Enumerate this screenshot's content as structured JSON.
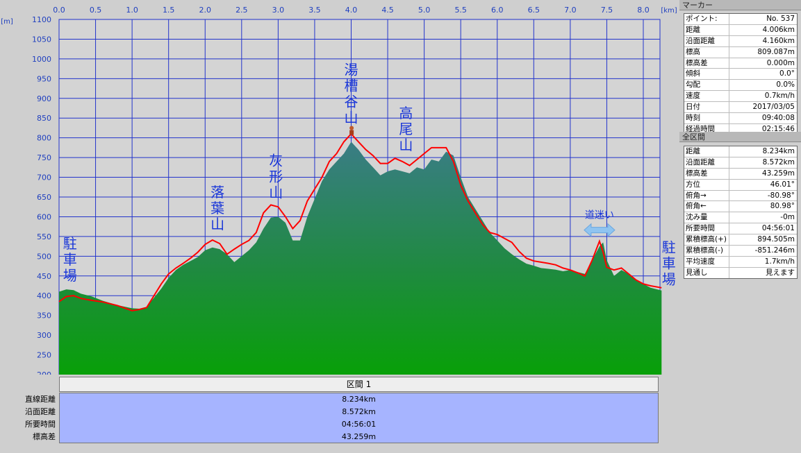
{
  "chart_data": {
    "type": "area",
    "xlabel_unit": "[km]",
    "ylabel_unit": "[m]",
    "x_ticks": [
      "0.0",
      "0.5",
      "1.0",
      "1.5",
      "2.0",
      "2.5",
      "3.0",
      "3.5",
      "4.0",
      "4.5",
      "5.0",
      "5.5",
      "6.0",
      "6.5",
      "7.0",
      "7.5",
      "8.0"
    ],
    "y_ticks": [
      "1100",
      "1050",
      "1000",
      "950",
      "900",
      "850",
      "800",
      "750",
      "700",
      "650",
      "600",
      "550",
      "500",
      "450",
      "400",
      "350",
      "300",
      "250",
      "200"
    ],
    "xlim": [
      0,
      8.25
    ],
    "ylim": [
      200,
      1100
    ],
    "grid": true,
    "series": [
      {
        "role": "terrain",
        "color": "#1f9a3a",
        "x": [
          0,
          0.1,
          0.2,
          0.3,
          0.45,
          0.6,
          0.8,
          1.0,
          1.1,
          1.2,
          1.3,
          1.4,
          1.5,
          1.6,
          1.7,
          1.8,
          1.9,
          2.0,
          2.1,
          2.2,
          2.3,
          2.4,
          2.5,
          2.6,
          2.7,
          2.8,
          2.9,
          3.0,
          3.1,
          3.2,
          3.3,
          3.4,
          3.5,
          3.6,
          3.7,
          3.8,
          3.9,
          4.0,
          4.1,
          4.2,
          4.3,
          4.4,
          4.5,
          4.6,
          4.7,
          4.8,
          4.9,
          5.0,
          5.1,
          5.2,
          5.3,
          5.4,
          5.5,
          5.6,
          5.7,
          5.8,
          5.9,
          6.0,
          6.1,
          6.2,
          6.3,
          6.4,
          6.5,
          6.6,
          6.7,
          6.8,
          6.9,
          7.0,
          7.1,
          7.2,
          7.3,
          7.4,
          7.45,
          7.5,
          7.6,
          7.7,
          7.8,
          7.9,
          8.0,
          8.1,
          8.25
        ],
        "values": [
          410,
          416,
          414,
          405,
          398,
          387,
          376,
          368,
          367,
          372,
          395,
          418,
          445,
          465,
          478,
          488,
          498,
          515,
          522,
          518,
          505,
          485,
          500,
          515,
          535,
          570,
          598,
          600,
          585,
          540,
          540,
          600,
          645,
          690,
          720,
          740,
          760,
          790,
          770,
          745,
          725,
          705,
          715,
          720,
          715,
          710,
          725,
          720,
          745,
          740,
          765,
          755,
          700,
          650,
          620,
          590,
          560,
          540,
          520,
          505,
          492,
          481,
          476,
          470,
          468,
          466,
          462,
          465,
          460,
          455,
          490,
          525,
          535,
          490,
          450,
          465,
          455,
          440,
          430,
          420,
          413
        ]
      },
      {
        "role": "track",
        "color": "#ff0000",
        "x": [
          0,
          0.1,
          0.2,
          0.3,
          0.45,
          0.6,
          0.8,
          1.0,
          1.1,
          1.2,
          1.3,
          1.4,
          1.5,
          1.6,
          1.7,
          1.8,
          1.9,
          2.0,
          2.1,
          2.2,
          2.3,
          2.4,
          2.5,
          2.6,
          2.7,
          2.8,
          2.9,
          3.0,
          3.1,
          3.2,
          3.3,
          3.4,
          3.5,
          3.6,
          3.7,
          3.8,
          3.9,
          4.0,
          4.1,
          4.2,
          4.3,
          4.4,
          4.5,
          4.6,
          4.7,
          4.8,
          4.9,
          5.0,
          5.1,
          5.2,
          5.3,
          5.4,
          5.5,
          5.6,
          5.7,
          5.8,
          5.9,
          6.0,
          6.1,
          6.2,
          6.3,
          6.4,
          6.5,
          6.6,
          6.7,
          6.8,
          6.9,
          7.0,
          7.1,
          7.2,
          7.3,
          7.4,
          7.45,
          7.5,
          7.6,
          7.7,
          7.8,
          7.9,
          8.0,
          8.1,
          8.25
        ],
        "values": [
          385,
          398,
          400,
          393,
          388,
          384,
          375,
          362,
          365,
          370,
          400,
          430,
          455,
          470,
          482,
          495,
          510,
          530,
          541,
          532,
          505,
          518,
          530,
          540,
          560,
          610,
          630,
          625,
          600,
          570,
          590,
          640,
          670,
          700,
          740,
          760,
          790,
          810,
          790,
          770,
          755,
          735,
          735,
          748,
          740,
          730,
          745,
          760,
          775,
          775,
          775,
          740,
          680,
          640,
          610,
          580,
          560,
          555,
          545,
          535,
          512,
          495,
          488,
          485,
          482,
          478,
          470,
          465,
          458,
          450,
          490,
          538,
          510,
          472,
          465,
          470,
          455,
          440,
          430,
          425,
          420
        ]
      }
    ],
    "annotations": [
      {
        "text": "駐車場",
        "x": 0.15,
        "y": 520
      },
      {
        "text": "落葉山",
        "x": 2.17,
        "y": 650
      },
      {
        "text": "灰形山",
        "x": 2.97,
        "y": 730
      },
      {
        "text": "湯槽谷山",
        "x": 4.0,
        "y": 960
      },
      {
        "text": "高尾山",
        "x": 4.75,
        "y": 850
      },
      {
        "text": "道迷い",
        "x": 7.4,
        "y": 605
      },
      {
        "text": "駐車場",
        "x": 8.35,
        "y": 510
      }
    ],
    "marker": {
      "x": 4.006,
      "y": 809.087
    }
  },
  "marker_panel": {
    "title": "マーカー",
    "rows": [
      {
        "k": "ポイント:",
        "v": "No. 537"
      },
      {
        "k": "距離",
        "v": "4.006km"
      },
      {
        "k": "沿面距離",
        "v": "4.160km"
      },
      {
        "k": "標高",
        "v": "809.087m"
      },
      {
        "k": "標高差",
        "v": "0.000m"
      },
      {
        "k": "傾斜",
        "v": "0.0°"
      },
      {
        "k": "勾配",
        "v": "0.0%"
      },
      {
        "k": "速度",
        "v": "0.7km/h"
      },
      {
        "k": "日付",
        "v": "2017/03/05"
      },
      {
        "k": "時刻",
        "v": "09:40:08"
      },
      {
        "k": "経過時間",
        "v": "02:15:46"
      }
    ]
  },
  "total_panel": {
    "title": "全区間",
    "rows": [
      {
        "k": "距離",
        "v": "8.234km"
      },
      {
        "k": "沿面距離",
        "v": "8.572km"
      },
      {
        "k": "標高差",
        "v": "43.259m"
      },
      {
        "k": "方位",
        "v": "46.01°"
      },
      {
        "k": "俯角→",
        "v": "-80.98°"
      },
      {
        "k": "俯角←",
        "v": "80.98°"
      },
      {
        "k": "沈み量",
        "v": "-0m"
      },
      {
        "k": "所要時間",
        "v": "04:56:01"
      },
      {
        "k": "累積標高(+)",
        "v": "894.505m"
      },
      {
        "k": "累積標高(-)",
        "v": "-851.246m"
      },
      {
        "k": "平均速度",
        "v": "1.7km/h"
      },
      {
        "k": "見通し",
        "v": "見えます"
      }
    ]
  },
  "section": {
    "header": "区間 1",
    "labels": [
      "直線距離",
      "沿面距離",
      "所要時間",
      "標高差"
    ],
    "values": [
      "8.234km",
      "8.572km",
      "04:56:01",
      "43.259m"
    ]
  },
  "colors": {
    "plot_bg": "#d4d4d4",
    "grid": "#2233cc",
    "terrain_top": "#2b7d7a",
    "terrain_bottom": "#079a07",
    "track": "#ff0000",
    "stats_bg": "#a6b4ff"
  }
}
